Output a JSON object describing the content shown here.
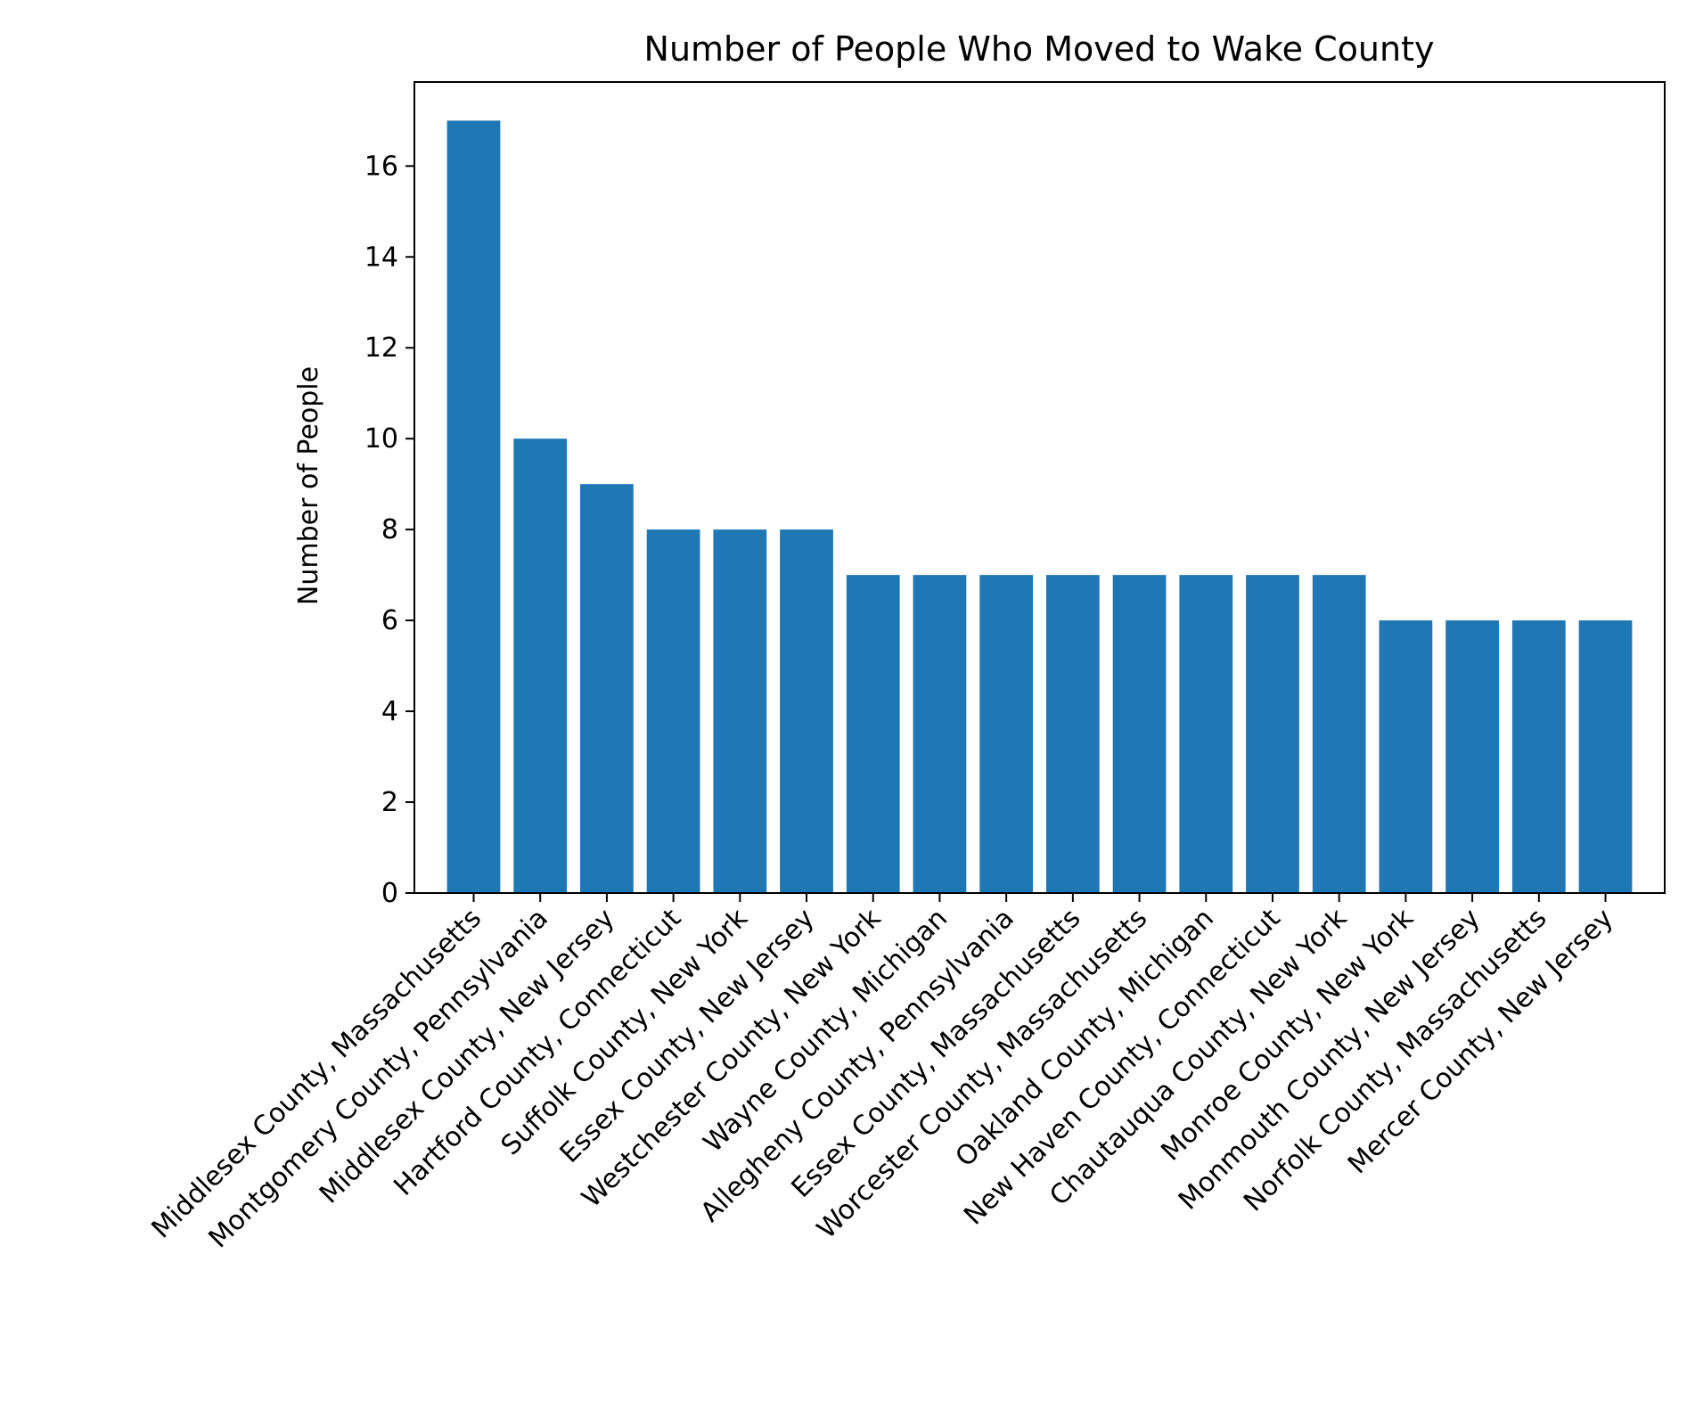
{
  "chart_data": {
    "type": "bar",
    "title": "Number of People Who Moved to Wake County",
    "xlabel": "",
    "ylabel": "Number of People",
    "ylim": [
      0,
      17.85
    ],
    "yticks": [
      0,
      2,
      4,
      6,
      8,
      10,
      12,
      14,
      16
    ],
    "grid": false,
    "bar_color": "#1f77b4",
    "categories": [
      "Middlesex County, Massachusetts",
      "Montgomery County, Pennsylvania",
      "Middlesex County, New Jersey",
      "Hartford County, Connecticut",
      "Suffolk County, New York",
      "Essex County, New Jersey",
      "Westchester County, New York",
      "Wayne County, Michigan",
      "Allegheny County, Pennsylvania",
      "Essex County, Massachusetts",
      "Worcester County, Massachusetts",
      "Oakland County, Michigan",
      "New Haven County, Connecticut",
      "Chautauqua County, New York",
      "Monroe County, New York",
      "Monmouth County, New Jersey",
      "Norfolk County, Massachusetts",
      "Mercer County, New Jersey"
    ],
    "values": [
      17,
      10,
      9,
      8,
      8,
      8,
      7,
      7,
      7,
      7,
      7,
      7,
      7,
      7,
      6,
      6,
      6,
      6
    ]
  }
}
